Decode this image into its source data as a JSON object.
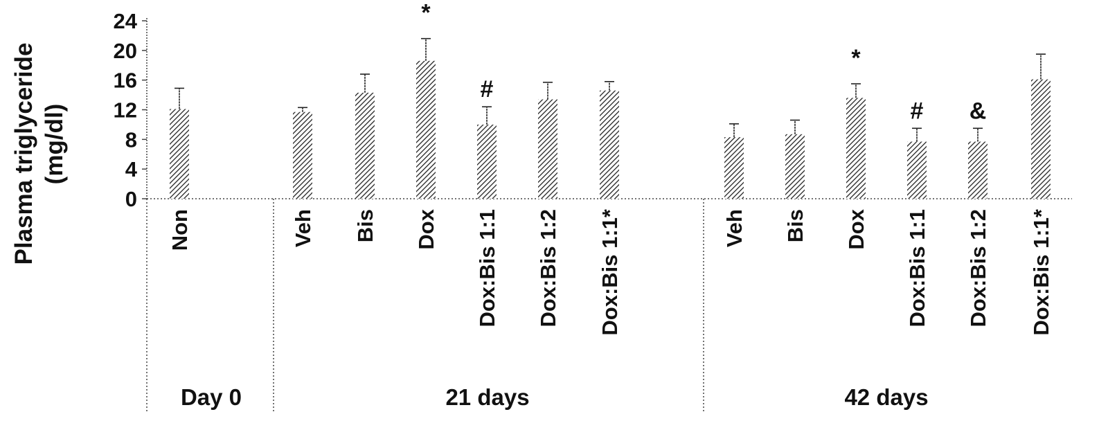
{
  "chart_data": {
    "type": "bar",
    "ylabel": "Plasma triglyceride (mg/dl)",
    "ylabel_lines": [
      "Plasma triglyceride",
      "(mg/dl)"
    ],
    "ylim": [
      0,
      24
    ],
    "yticks": [
      0,
      4,
      8,
      12,
      16,
      20,
      24
    ],
    "grid": false,
    "bar_fill": "diagonal hatch",
    "bar_color": "#222222",
    "groups": [
      {
        "label": "Day 0",
        "categories": [
          "Non"
        ]
      },
      {
        "label": "21 days",
        "categories": [
          "Veh",
          "Bis",
          "Dox",
          "Dox:Bis 1:1",
          "Dox:Bis 1:2",
          "Dox:Bis 1:1*"
        ]
      },
      {
        "label": "42 days",
        "categories": [
          "Veh",
          "Bis",
          "Dox",
          "Dox:Bis 1:1",
          "Dox:Bis 1:2",
          "Dox:Bis 1:1*"
        ]
      }
    ],
    "categories": [
      "Non",
      "Veh",
      "Bis",
      "Dox",
      "Dox:Bis 1:1",
      "Dox:Bis 1:2",
      "Dox:Bis 1:1*",
      "Veh",
      "Bis",
      "Dox",
      "Dox:Bis 1:1",
      "Dox:Bis 1:2",
      "Dox:Bis 1:1*"
    ],
    "values": [
      12.1,
      11.7,
      14.3,
      18.6,
      10.0,
      13.4,
      14.6,
      8.3,
      8.7,
      13.6,
      7.7,
      7.7,
      16.1
    ],
    "errors": [
      2.8,
      0.6,
      2.5,
      3.0,
      2.4,
      2.3,
      1.2,
      1.8,
      1.9,
      1.9,
      1.8,
      1.8,
      3.4
    ],
    "annotations": [
      "",
      "",
      "",
      "*",
      "#",
      "",
      "",
      "",
      "",
      "*",
      "#",
      "&",
      ""
    ]
  }
}
